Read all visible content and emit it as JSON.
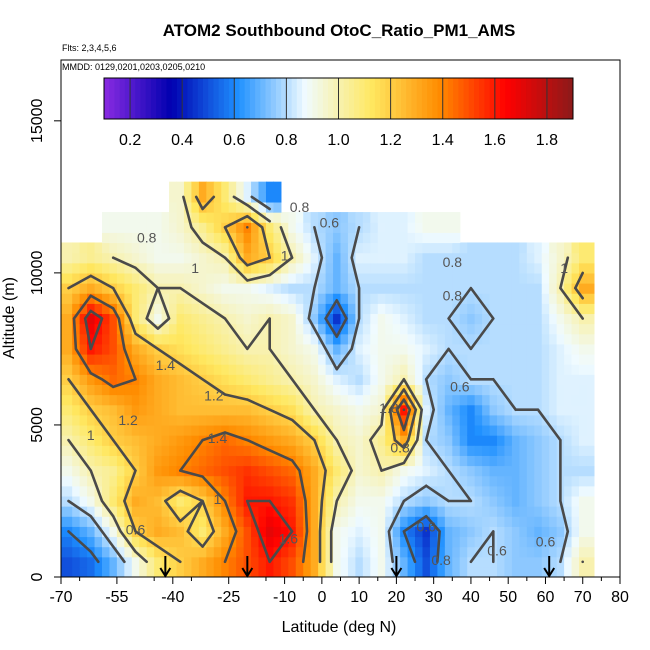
{
  "chart_data": {
    "type": "heatmap",
    "title": "ATOM2 Southbound OtoC_Ratio_PM1_AMS",
    "flights_label": "Flts: 2,3,4,5,6",
    "dates_label": "MMDD: 0129,0201,0203,0205,0210",
    "xlabel": "Latitude (deg N)",
    "ylabel": "Altitude (m)",
    "xlim": [
      -70,
      80
    ],
    "ylim": [
      0,
      17000
    ],
    "x_ticks": [
      "-70",
      "-55",
      "-40",
      "-25",
      "-10",
      "0",
      "10",
      "20",
      "30",
      "40",
      "50",
      "60",
      "70",
      "80"
    ],
    "x_tick_values": [
      -70,
      -55,
      -40,
      -25,
      -10,
      0,
      10,
      20,
      30,
      40,
      50,
      60,
      70,
      80
    ],
    "y_ticks": [
      "0",
      "5000",
      "10000",
      "15000"
    ],
    "y_tick_values": [
      0,
      5000,
      10000,
      15000
    ],
    "colorbar": {
      "range": [
        0.1,
        1.9
      ],
      "ticks": [
        "0.2",
        "0.4",
        "0.6",
        "0.8",
        "1.0",
        "1.2",
        "1.4",
        "1.6",
        "1.8"
      ],
      "tick_values": [
        0.2,
        0.4,
        0.6,
        0.8,
        1.0,
        1.2,
        1.4,
        1.6,
        1.8
      ],
      "colors": [
        "#8a2be2",
        "#0000b0",
        "#1e90ff",
        "#f0fbff",
        "#ffe860",
        "#ff8c00",
        "#ff0000",
        "#8b1a1a"
      ]
    },
    "grid": {
      "lat": [
        -68,
        -62,
        -56,
        -50,
        -44,
        -38,
        -32,
        -26,
        -20,
        -14,
        -8,
        -2,
        4,
        10,
        16,
        22,
        28,
        34,
        40,
        46,
        52,
        58,
        64,
        70
      ],
      "alt": [
        500,
        1500,
        2500,
        3500,
        4500,
        5500,
        6500,
        7500,
        8500,
        9500,
        10500,
        11500,
        12500
      ],
      "values": [
        [
          0.5,
          0.55,
          0.7,
          0.9,
          1.1,
          1.2,
          1.3,
          1.4,
          1.5,
          1.6,
          1.5,
          1.3,
          0.9,
          0.8,
          0.9,
          0.7,
          0.5,
          0.7,
          0.8,
          0.8,
          0.75,
          0.75,
          0.8,
          1.0
        ],
        [
          0.6,
          0.7,
          0.9,
          1.2,
          1.3,
          1.25,
          1.1,
          1.3,
          1.5,
          1.7,
          1.6,
          1.3,
          0.9,
          0.85,
          0.9,
          0.6,
          0.45,
          0.7,
          0.75,
          0.8,
          0.75,
          0.7,
          0.75,
          0.9
        ],
        [
          0.8,
          0.9,
          1.1,
          1.3,
          1.25,
          1.1,
          1.2,
          1.4,
          1.6,
          1.6,
          1.55,
          1.3,
          1.0,
          0.9,
          0.9,
          0.8,
          0.75,
          0.8,
          0.8,
          0.75,
          0.7,
          0.75,
          0.8,
          0.9
        ],
        [
          0.9,
          1.0,
          1.05,
          1.2,
          1.35,
          1.4,
          1.45,
          1.5,
          1.55,
          1.5,
          1.45,
          1.3,
          1.1,
          0.95,
          1.0,
          0.9,
          0.85,
          0.8,
          0.75,
          0.7,
          0.7,
          0.75,
          0.8,
          0.8
        ],
        [
          1.0,
          1.1,
          1.2,
          1.25,
          1.3,
          1.35,
          1.4,
          1.45,
          1.4,
          1.35,
          1.3,
          1.2,
          1.0,
          0.95,
          1.05,
          1.3,
          0.8,
          0.75,
          0.6,
          0.6,
          0.7,
          0.75,
          0.8,
          0.85
        ],
        [
          1.1,
          1.2,
          1.25,
          1.35,
          1.3,
          1.25,
          1.25,
          1.25,
          1.25,
          1.2,
          1.15,
          1.0,
          0.95,
          0.9,
          0.95,
          1.6,
          0.85,
          0.7,
          0.6,
          0.75,
          0.8,
          0.8,
          0.85,
          0.85
        ],
        [
          1.2,
          1.35,
          1.45,
          1.4,
          1.3,
          1.25,
          1.2,
          1.15,
          1.1,
          1.05,
          1.0,
          0.95,
          0.85,
          0.8,
          0.9,
          1.0,
          0.8,
          0.75,
          0.8,
          0.8,
          0.8,
          0.8,
          0.85,
          0.85
        ],
        [
          1.3,
          1.6,
          1.5,
          1.3,
          1.2,
          1.15,
          1.1,
          1.05,
          1.0,
          1.0,
          0.95,
          0.9,
          0.7,
          0.85,
          0.9,
          0.9,
          0.85,
          0.8,
          0.8,
          0.8,
          0.8,
          0.8,
          0.85,
          0.9
        ],
        [
          1.3,
          1.7,
          1.5,
          1.1,
          0.9,
          1.1,
          1.05,
          1.0,
          0.95,
          1.0,
          0.95,
          0.75,
          0.45,
          0.8,
          0.9,
          0.85,
          0.8,
          0.8,
          0.75,
          0.8,
          0.8,
          0.8,
          0.9,
          1.0
        ],
        [
          1.2,
          1.3,
          1.2,
          1.1,
          1.0,
          1.0,
          0.95,
          0.9,
          0.9,
          0.85,
          0.8,
          0.8,
          0.7,
          0.8,
          0.8,
          0.8,
          0.8,
          0.8,
          0.8,
          0.8,
          0.8,
          0.8,
          1.0,
          1.3
        ],
        [
          1.0,
          1.05,
          1.0,
          0.95,
          0.9,
          0.9,
          0.95,
          1.0,
          1.3,
          1.2,
          1.0,
          0.85,
          0.7,
          0.85,
          0.85,
          0.85,
          0.8,
          0.8,
          0.8,
          0.8,
          0.8,
          0.85,
          0.95,
          1.1
        ],
        [
          null,
          null,
          0.9,
          0.9,
          0.9,
          0.95,
          1.05,
          1.2,
          1.4,
          1.1,
          0.9,
          0.8,
          0.75,
          0.8,
          0.85,
          0.85,
          0.9,
          0.9,
          null,
          null,
          null,
          null,
          null,
          null
        ],
        [
          null,
          null,
          null,
          null,
          null,
          0.95,
          1.3,
          1.1,
          0.85,
          0.6,
          null,
          null,
          null,
          null,
          null,
          null,
          null,
          null,
          null,
          null,
          null,
          null,
          null,
          null
        ]
      ]
    },
    "contour_labels": [
      "0.8",
      "0.8",
      "1",
      "0.6",
      "1",
      "0.8",
      "0.8",
      "0.6",
      "1.4",
      "1.2",
      "1.2",
      "1",
      "1.4",
      "0.6",
      "0.6",
      "1",
      "1.6",
      "1.8",
      "0.6",
      "0.8",
      "0.6",
      "0.8",
      "1"
    ],
    "flight_markers_lat": [
      -42,
      -20,
      20,
      61
    ]
  }
}
